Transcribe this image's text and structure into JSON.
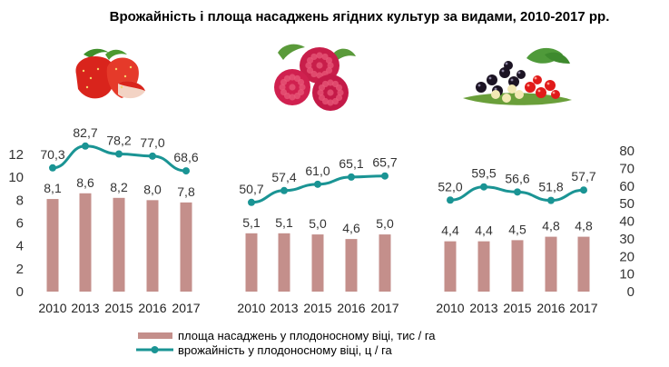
{
  "chart_data": {
    "type": "bar",
    "title": "Врожайність і площа насаджень ягідних культур за видами, 2010-2017 рр.",
    "left_axis": {
      "ylim": [
        0,
        12
      ],
      "ticks": [
        "0",
        "2",
        "4",
        "6",
        "8",
        "10",
        "12"
      ]
    },
    "right_axis": {
      "ylim": [
        0,
        80
      ],
      "ticks": [
        "0",
        "10",
        "20",
        "30",
        "40",
        "50",
        "60",
        "70",
        "80"
      ]
    },
    "grid": false,
    "legend_placement": "bottom-center",
    "colors": {
      "bar": "#c48f8b",
      "line": "#1a9494",
      "axis_text": "#333333"
    },
    "groups": [
      {
        "icon": "strawberry-icon",
        "categories": [
          "2010",
          "2013",
          "2015",
          "2016",
          "2017"
        ],
        "bars": [
          8.1,
          8.6,
          8.2,
          8.0,
          7.8
        ],
        "bar_labels": [
          "8,1",
          "8,6",
          "8,2",
          "8,0",
          "7,8"
        ],
        "line": [
          70.3,
          82.7,
          78.2,
          77.0,
          68.6
        ],
        "line_labels": [
          "70,3",
          "82,7",
          "78,2",
          "77,0",
          "68,6"
        ]
      },
      {
        "icon": "raspberry-icon",
        "categories": [
          "2010",
          "2013",
          "2015",
          "2016",
          "2017"
        ],
        "bars": [
          5.1,
          5.1,
          5.0,
          4.6,
          5.0
        ],
        "bar_labels": [
          "5,1",
          "5,1",
          "5,0",
          "4,6",
          "5,0"
        ],
        "line": [
          50.7,
          57.4,
          61.0,
          65.1,
          65.7
        ],
        "line_labels": [
          "50,7",
          "57,4",
          "61,0",
          "65,1",
          "65,7"
        ]
      },
      {
        "icon": "currant-icon",
        "categories": [
          "2010",
          "2013",
          "2015",
          "2016",
          "2017"
        ],
        "bars": [
          4.4,
          4.4,
          4.5,
          4.8,
          4.8
        ],
        "bar_labels": [
          "4,4",
          "4,4",
          "4,5",
          "4,8",
          "4,8"
        ],
        "line": [
          52.0,
          59.5,
          56.6,
          51.8,
          57.7
        ],
        "line_labels": [
          "52,0",
          "59,5",
          "56,6",
          "51,8",
          "57,7"
        ]
      }
    ],
    "legend": [
      {
        "kind": "bar",
        "label": "площа насаджень у плодоносному віці, тис / га"
      },
      {
        "kind": "line",
        "label": "врожайність у плодоносному віці, ц / га"
      }
    ]
  }
}
